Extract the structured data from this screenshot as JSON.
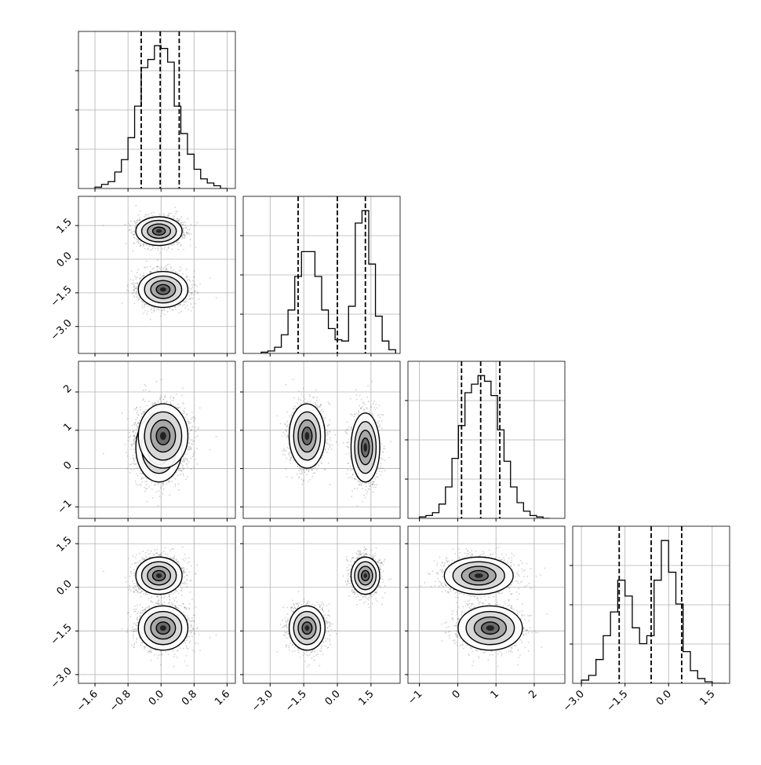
{
  "chart_data": {
    "type": "corner",
    "parameters": [
      {
        "ticks": [
          "−1.6",
          "−0.8",
          "0.0",
          "0.8",
          "1.6"
        ],
        "tick_values": [
          -1.6,
          -0.8,
          0.0,
          0.8,
          1.6
        ],
        "range": [
          -2.0,
          1.8
        ],
        "quantiles": [
          -0.48,
          -0.02,
          0.44
        ]
      },
      {
        "ticks": [
          "−3.0",
          "−1.5",
          "0.0",
          "1.5"
        ],
        "tick_values": [
          -3.0,
          -1.5,
          0.0,
          1.5
        ],
        "range": [
          -4.2,
          2.8
        ],
        "quantiles": [
          -1.75,
          0.0,
          1.25
        ]
      },
      {
        "ticks": [
          "−1",
          "0",
          "1",
          "2"
        ],
        "tick_values": [
          -1,
          0,
          1,
          2
        ],
        "range": [
          -1.3,
          2.8
        ],
        "quantiles": [
          0.1,
          0.6,
          1.1
        ]
      },
      {
        "ticks": [
          "−3.0",
          "−1.5",
          "0.0",
          "1.5"
        ],
        "tick_values": [
          -3.0,
          -1.5,
          0.0,
          1.5
        ],
        "range": [
          -3.3,
          2.1
        ],
        "quantiles": [
          -1.7,
          -0.6,
          0.45
        ]
      }
    ],
    "histograms": [
      {
        "bins_range": [
          -1.6,
          1.6
        ],
        "counts": [
          1,
          3,
          5,
          12,
          21,
          37,
          60,
          88,
          94,
          104,
          102,
          92,
          60,
          40,
          25,
          14,
          7,
          4,
          2,
          0
        ]
      },
      {
        "bins_range": [
          -3.4,
          2.6
        ],
        "counts": [
          1,
          2,
          5,
          15,
          35,
          62,
          82,
          82,
          62,
          35,
          20,
          11,
          10,
          38,
          105,
          115,
          72,
          30,
          10,
          3
        ]
      },
      {
        "bins_range": [
          -1.0,
          2.4
        ],
        "counts": [
          1,
          2,
          4,
          10,
          22,
          42,
          65,
          88,
          94,
          100,
          96,
          86,
          62,
          40,
          22,
          11,
          5,
          2,
          1,
          0
        ]
      },
      {
        "bins_range": [
          -3.0,
          2.0
        ],
        "counts": [
          2,
          5,
          15,
          30,
          45,
          65,
          55,
          35,
          25,
          30,
          65,
          90,
          70,
          50,
          20,
          8,
          3,
          1,
          0,
          0
        ]
      }
    ],
    "modes": [
      {
        "weight": 0.5,
        "mean": [
          -0.05,
          1.25,
          0.55,
          0.4
        ],
        "sd": [
          0.28,
          0.32,
          0.45,
          0.32
        ]
      },
      {
        "weight": 0.5,
        "mean": [
          0.05,
          -1.35,
          0.85,
          -1.4
        ],
        "sd": [
          0.3,
          0.4,
          0.42,
          0.38
        ]
      }
    ],
    "grid": true,
    "xlabel": "",
    "ylabel": "",
    "title": ""
  }
}
